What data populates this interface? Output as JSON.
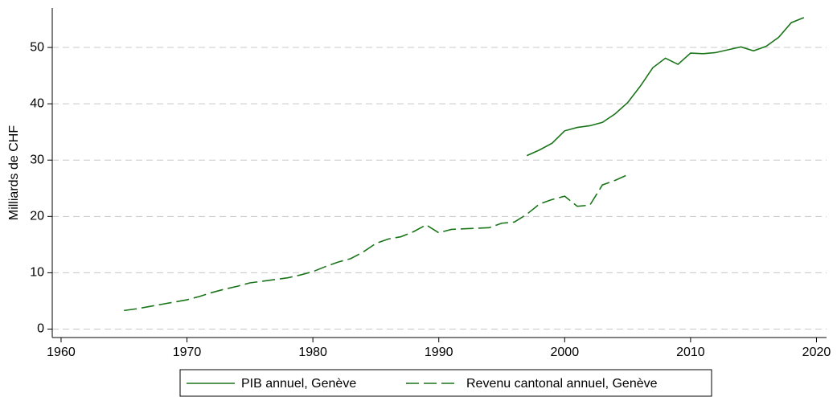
{
  "chart_data": {
    "type": "line",
    "ylabel": "Milliards de CHF",
    "x": [
      1965,
      1966,
      1967,
      1968,
      1969,
      1970,
      1971,
      1972,
      1973,
      1974,
      1975,
      1976,
      1977,
      1978,
      1979,
      1980,
      1981,
      1982,
      1983,
      1984,
      1985,
      1986,
      1987,
      1988,
      1989,
      1990,
      1991,
      1992,
      1993,
      1994,
      1995,
      1996,
      1997,
      1998,
      1999,
      2000,
      2001,
      2002,
      2003,
      2004,
      2005,
      2006,
      2007,
      2008,
      2009,
      2010,
      2011,
      2012,
      2013,
      2014,
      2015,
      2016,
      2017,
      2018,
      2019
    ],
    "series": [
      {
        "name": "PIB annuel, Genève",
        "color": "#1a751a",
        "linestyle": "solid",
        "values": [
          null,
          null,
          null,
          null,
          null,
          null,
          null,
          null,
          null,
          null,
          null,
          null,
          null,
          null,
          null,
          null,
          null,
          null,
          null,
          null,
          null,
          null,
          null,
          null,
          null,
          null,
          null,
          null,
          null,
          null,
          null,
          null,
          30.8,
          31.8,
          33,
          35.2,
          35.8,
          36.1,
          36.7,
          38.2,
          40.2,
          43.1,
          46.4,
          48.1,
          47,
          49,
          48.9,
          49.1,
          49.6,
          50.1,
          49.4,
          50.2,
          51.8,
          54.4,
          55.3
        ]
      },
      {
        "name": "Revenu cantonal annuel, Genève",
        "color": "#1a751a",
        "linestyle": "dashed",
        "values": [
          3.3,
          3.6,
          4.0,
          4.4,
          4.8,
          5.2,
          5.8,
          6.5,
          7.1,
          7.6,
          8.2,
          8.5,
          8.8,
          9.1,
          9.6,
          10.2,
          11.1,
          11.9,
          12.5,
          13.7,
          15.2,
          16.0,
          16.4,
          17.3,
          18.5,
          17.1,
          17.7,
          17.8,
          17.9,
          18.0,
          18.8,
          19.0,
          20.4,
          22.2,
          23.0,
          23.6,
          21.8,
          22.0,
          25.6,
          26.4,
          27.4,
          null,
          null,
          null,
          null,
          null,
          null,
          null,
          null,
          null,
          null,
          null,
          null,
          null,
          null
        ]
      }
    ],
    "xlim": [
      1959.3,
      2020.8
    ],
    "xticks": [
      1960,
      1970,
      1980,
      1990,
      2000,
      2010,
      2020
    ],
    "ylim": [
      -1.5,
      57
    ],
    "yticks": [
      0,
      10,
      20,
      30,
      40,
      50
    ],
    "grid": true,
    "legend": "bottom"
  }
}
